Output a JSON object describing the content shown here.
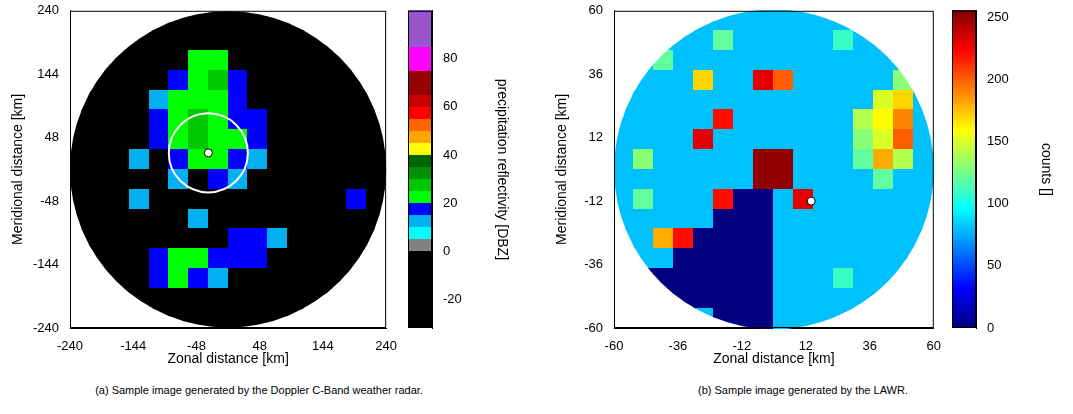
{
  "chart_data": [
    {
      "type": "heatmap",
      "caption": "(a) Sample image generated by the Doppler C-Band weather radar.",
      "x_label": "Zonal distance [km]",
      "y_label": "Meridional distance [km]",
      "xlim": [
        -240,
        240
      ],
      "ylim": [
        -240,
        240
      ],
      "xticks": [
        -240,
        -144,
        -48,
        48,
        144,
        240
      ],
      "yticks": [
        -240,
        -144,
        -48,
        48,
        144,
        240
      ],
      "grid": false,
      "x": [
        -225,
        -195,
        -165,
        -135,
        -105,
        -75,
        -45,
        -15,
        15,
        45,
        75,
        105,
        135,
        165,
        195,
        225
      ],
      "y": [
        225,
        195,
        165,
        135,
        105,
        75,
        45,
        15,
        -15,
        -45,
        -75,
        -105,
        -135,
        -165,
        -195,
        -225
      ],
      "cells": [
        [
          -30,
          -30,
          -30,
          -30,
          -30,
          -30,
          -30,
          -30,
          -30,
          -30,
          -30,
          -30,
          -30,
          -30,
          -30,
          -30
        ],
        [
          -30,
          -30,
          -30,
          -30,
          -30,
          -30,
          -30,
          -30,
          -30,
          -30,
          -30,
          -30,
          -30,
          -30,
          -30,
          -30
        ],
        [
          -30,
          -30,
          -30,
          -30,
          -30,
          -30,
          20,
          22,
          -30,
          -30,
          -30,
          -30,
          -30,
          -30,
          -30,
          -30
        ],
        [
          -30,
          -30,
          -30,
          -30,
          -30,
          15,
          22,
          25,
          18,
          -30,
          -30,
          -30,
          -30,
          -30,
          -30,
          -30
        ],
        [
          -30,
          -30,
          -30,
          -30,
          12,
          20,
          22,
          20,
          15,
          -30,
          -30,
          -30,
          -30,
          -30,
          -30,
          -30
        ],
        [
          -30,
          -30,
          -30,
          -30,
          15,
          22,
          25,
          22,
          18,
          15,
          -30,
          -30,
          -30,
          -30,
          -30,
          -30
        ],
        [
          -30,
          -30,
          -30,
          -30,
          15,
          20,
          25,
          22,
          20,
          18,
          -30,
          -30,
          -30,
          -30,
          -30,
          -30
        ],
        [
          -30,
          -30,
          -30,
          10,
          -30,
          18,
          20,
          22,
          15,
          12,
          -30,
          -30,
          -30,
          -30,
          -30,
          -30
        ],
        [
          -30,
          -30,
          -30,
          -30,
          -30,
          12,
          -30,
          18,
          12,
          -30,
          -30,
          -30,
          -30,
          -30,
          -30,
          -30
        ],
        [
          -30,
          -30,
          -30,
          10,
          -30,
          -30,
          -30,
          -30,
          -30,
          -30,
          -30,
          -30,
          -30,
          -30,
          15,
          -30
        ],
        [
          -30,
          -30,
          -30,
          -30,
          -30,
          -30,
          10,
          -30,
          -30,
          -30,
          -30,
          -30,
          -30,
          -30,
          -30,
          -30
        ],
        [
          -30,
          -30,
          -30,
          -30,
          -30,
          -30,
          -30,
          -30,
          15,
          18,
          12,
          -30,
          -30,
          -30,
          -30,
          -30
        ],
        [
          -30,
          -30,
          -30,
          -30,
          15,
          22,
          20,
          18,
          15,
          18,
          -30,
          -30,
          -30,
          -30,
          -30,
          -30
        ],
        [
          -30,
          -30,
          -30,
          -30,
          18,
          20,
          15,
          12,
          -30,
          -30,
          -30,
          -30,
          -30,
          -30,
          -30,
          -30
        ],
        [
          -30,
          -30,
          -30,
          -30,
          -30,
          -30,
          -30,
          -30,
          -30,
          -30,
          -30,
          -30,
          -30,
          -30,
          -30,
          -30
        ],
        [
          -30,
          -30,
          -30,
          -30,
          -30,
          -30,
          -30,
          -30,
          -30,
          -30,
          -30,
          -30,
          -30,
          -30,
          -30,
          -30
        ]
      ],
      "colorbar": {
        "label": "precipitation reflectivity [DBZ]",
        "lim": [
          -32,
          100
        ],
        "ticks": [
          -20,
          0,
          20,
          40,
          60,
          80
        ]
      },
      "site": {
        "x": -30,
        "y": 25
      },
      "range_circle": 60
    },
    {
      "type": "heatmap",
      "caption": "(b) Sample image generated by the LAWR.",
      "x_label": "Zonal distance [km]",
      "y_label": "Meridional distance [km]",
      "xlim": [
        -60,
        60
      ],
      "ylim": [
        -60,
        60
      ],
      "xticks": [
        -60,
        -36,
        -12,
        12,
        36,
        60
      ],
      "yticks": [
        -60,
        -36,
        -12,
        12,
        36,
        60
      ],
      "grid": false,
      "x": [
        -56.25,
        -48.75,
        -41.25,
        -33.75,
        -26.25,
        -18.75,
        -11.25,
        -3.75,
        3.75,
        11.25,
        18.75,
        26.25,
        33.75,
        41.25,
        48.75,
        56.25
      ],
      "y": [
        56.25,
        48.75,
        41.25,
        33.75,
        26.25,
        18.75,
        11.25,
        3.75,
        -3.75,
        -11.25,
        -18.75,
        -26.25,
        -33.75,
        -41.25,
        -48.75,
        -56.25
      ],
      "cells": [
        [
          80,
          80,
          80,
          80,
          80,
          80,
          80,
          80,
          80,
          80,
          80,
          80,
          80,
          80,
          80,
          80
        ],
        [
          80,
          80,
          80,
          80,
          80,
          120,
          80,
          80,
          80,
          80,
          80,
          110,
          80,
          80,
          80,
          80
        ],
        [
          80,
          80,
          120,
          80,
          80,
          80,
          80,
          80,
          80,
          80,
          80,
          80,
          80,
          80,
          80,
          80
        ],
        [
          80,
          80,
          80,
          80,
          170,
          80,
          80,
          230,
          200,
          80,
          80,
          80,
          80,
          80,
          130,
          80
        ],
        [
          80,
          80,
          80,
          80,
          80,
          80,
          80,
          80,
          80,
          80,
          80,
          80,
          80,
          150,
          170,
          80
        ],
        [
          80,
          80,
          80,
          80,
          80,
          220,
          80,
          80,
          80,
          80,
          80,
          80,
          140,
          160,
          190,
          80
        ],
        [
          80,
          80,
          80,
          80,
          230,
          80,
          80,
          80,
          80,
          80,
          80,
          80,
          130,
          150,
          200,
          80
        ],
        [
          80,
          130,
          80,
          80,
          80,
          80,
          80,
          250,
          250,
          80,
          80,
          80,
          120,
          180,
          140,
          80
        ],
        [
          80,
          80,
          80,
          80,
          80,
          80,
          80,
          250,
          250,
          80,
          80,
          80,
          80,
          120,
          80,
          80
        ],
        [
          80,
          120,
          80,
          80,
          80,
          220,
          0,
          0,
          80,
          230,
          80,
          80,
          80,
          80,
          80,
          80
        ],
        [
          80,
          80,
          80,
          80,
          80,
          0,
          0,
          0,
          80,
          80,
          80,
          80,
          80,
          80,
          80,
          80
        ],
        [
          80,
          80,
          180,
          220,
          0,
          0,
          0,
          0,
          80,
          80,
          80,
          80,
          80,
          80,
          80,
          80
        ],
        [
          80,
          80,
          80,
          0,
          0,
          0,
          0,
          0,
          80,
          80,
          80,
          80,
          80,
          80,
          80,
          80
        ],
        [
          80,
          0,
          0,
          0,
          0,
          0,
          0,
          0,
          80,
          80,
          80,
          110,
          80,
          80,
          80,
          80
        ],
        [
          80,
          0,
          0,
          0,
          0,
          0,
          0,
          0,
          80,
          80,
          80,
          80,
          80,
          80,
          80,
          80
        ],
        [
          80,
          80,
          80,
          80,
          80,
          0,
          0,
          0,
          80,
          80,
          80,
          80,
          80,
          80,
          80,
          80
        ]
      ],
      "colorbar": {
        "label": "counts []",
        "lim": [
          0,
          255
        ],
        "ticks": [
          0,
          50,
          100,
          150,
          200,
          250
        ]
      },
      "site": {
        "x": 14,
        "y": -12
      },
      "range_circle": null
    }
  ]
}
